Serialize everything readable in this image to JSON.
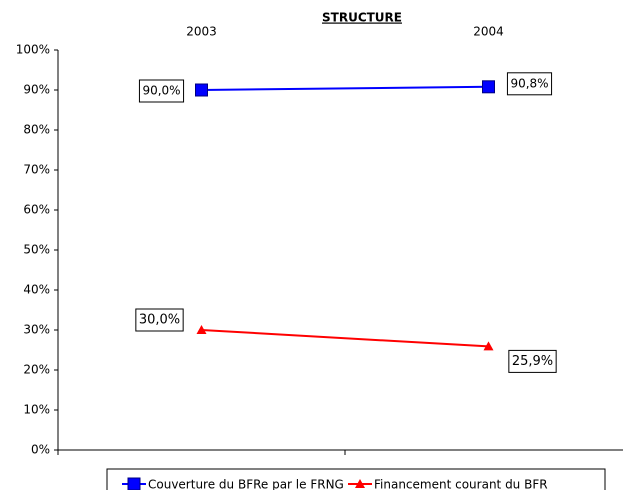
{
  "chart_data": {
    "type": "line",
    "title": "STRUCTURE",
    "categories": [
      "2003",
      "2004"
    ],
    "series": [
      {
        "name": "Couverture du BFRe par le FRNG",
        "color": "#0000ff",
        "marker": "square",
        "values": [
          90.0,
          90.8
        ],
        "value_labels": [
          "90,0%",
          "90,8%"
        ]
      },
      {
        "name": "Financement courant du BFR",
        "color": "#ff0000",
        "marker": "triangle",
        "values": [
          30.0,
          25.9
        ],
        "value_labels": [
          "30,0%",
          "25,9%"
        ]
      }
    ],
    "ylim": [
      0,
      100
    ],
    "yticks": [
      {
        "value": 0,
        "label": "0%"
      },
      {
        "value": 10,
        "label": "10%"
      },
      {
        "value": 20,
        "label": "20%"
      },
      {
        "value": 30,
        "label": "30%"
      },
      {
        "value": 40,
        "label": "40%"
      },
      {
        "value": 50,
        "label": "50%"
      },
      {
        "value": 60,
        "label": "60%"
      },
      {
        "value": 70,
        "label": "70%"
      },
      {
        "value": 80,
        "label": "80%"
      },
      {
        "value": 90,
        "label": "90%"
      },
      {
        "value": 100,
        "label": "100%"
      }
    ],
    "legend": "bottom"
  }
}
